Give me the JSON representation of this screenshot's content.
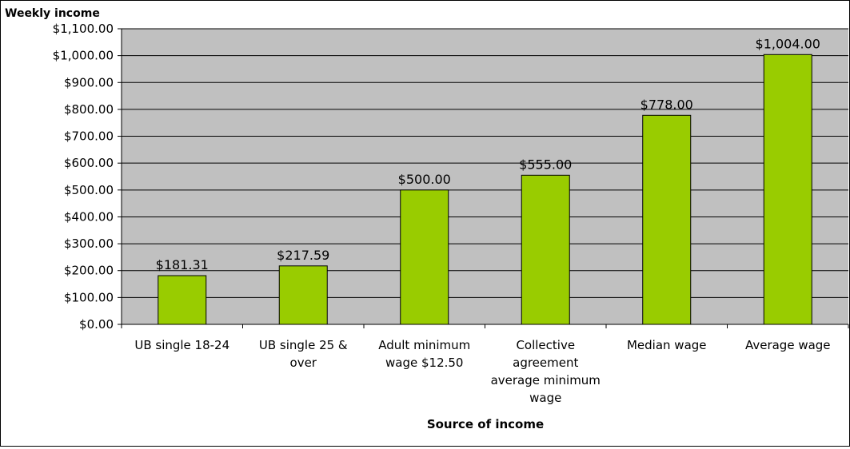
{
  "chart_data": {
    "type": "bar",
    "title": "",
    "ylabel": "Weekly income",
    "xlabel": "Source of income",
    "categories": [
      [
        "UB single 18-24"
      ],
      [
        "UB single 25 &",
        "over"
      ],
      [
        "Adult minimum",
        "wage $12.50"
      ],
      [
        "Collective",
        "agreement",
        "average minimum",
        "wage"
      ],
      [
        "Median wage"
      ],
      [
        "Average wage"
      ]
    ],
    "values": [
      181.31,
      217.59,
      500.0,
      555.0,
      778.0,
      1004.0
    ],
    "data_labels": [
      "$181.31",
      "$217.59",
      "$500.00",
      "$555.00",
      "$778.00",
      "$1,004.00"
    ],
    "ylim": [
      0,
      1100
    ],
    "yticks": [
      {
        "value": 0,
        "label": "$0.00"
      },
      {
        "value": 100,
        "label": "$100.00"
      },
      {
        "value": 200,
        "label": "$200.00"
      },
      {
        "value": 300,
        "label": "$300.00"
      },
      {
        "value": 400,
        "label": "$400.00"
      },
      {
        "value": 500,
        "label": "$500.00"
      },
      {
        "value": 600,
        "label": "$600.00"
      },
      {
        "value": 700,
        "label": "$700.00"
      },
      {
        "value": 800,
        "label": "$800.00"
      },
      {
        "value": 900,
        "label": "$900.00"
      },
      {
        "value": 1000,
        "label": "$1,000.00"
      },
      {
        "value": 1100,
        "label": "$1,100.00"
      }
    ],
    "grid": true,
    "colors": {
      "bar": "#99cc00",
      "bar_border": "#000000",
      "plot_background": "#c0c0c0",
      "gridline": "#000000"
    }
  }
}
